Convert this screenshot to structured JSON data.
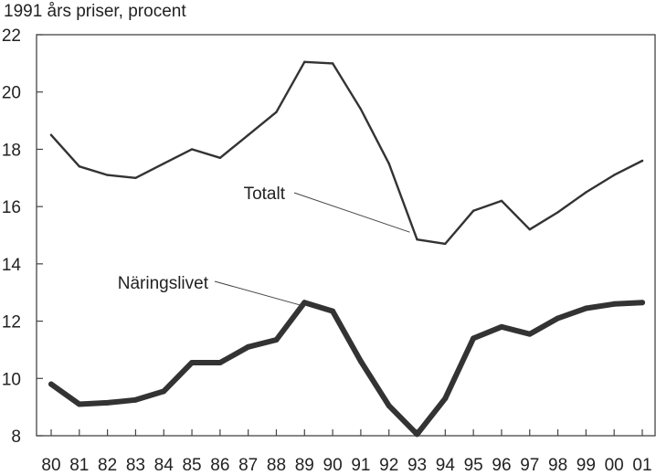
{
  "chart_data": {
    "type": "line",
    "title": "",
    "unit_label": "1991 års priser, procent",
    "xlabel": "",
    "ylabel": "",
    "categories": [
      "80",
      "81",
      "82",
      "83",
      "84",
      "85",
      "86",
      "87",
      "88",
      "89",
      "90",
      "91",
      "92",
      "93",
      "94",
      "95",
      "96",
      "97",
      "98",
      "99",
      "00",
      "01"
    ],
    "ylim": [
      8,
      22
    ],
    "yticks": [
      8,
      10,
      12,
      14,
      16,
      18,
      20,
      22
    ],
    "grid": false,
    "series": [
      {
        "name": "Totalt",
        "values": [
          18.5,
          17.4,
          17.1,
          17.0,
          17.5,
          18.0,
          17.7,
          18.5,
          19.3,
          21.05,
          21.0,
          19.4,
          17.5,
          14.85,
          14.7,
          15.85,
          16.2,
          15.2,
          15.8,
          16.5,
          17.1,
          17.6
        ],
        "color": "#333333",
        "stroke": "thin"
      },
      {
        "name": "Näringslivet",
        "values": [
          9.8,
          9.1,
          9.15,
          9.25,
          9.55,
          10.55,
          10.55,
          11.1,
          11.35,
          12.65,
          12.35,
          10.6,
          9.05,
          8.05,
          9.3,
          11.4,
          11.8,
          11.55,
          12.1,
          12.45,
          12.6,
          12.65
        ],
        "color": "#333333",
        "stroke": "thick"
      }
    ],
    "annotations": [
      {
        "text": "Totalt",
        "series": "Totalt"
      },
      {
        "text": "Näringslivet",
        "series": "Näringslivet"
      }
    ]
  }
}
